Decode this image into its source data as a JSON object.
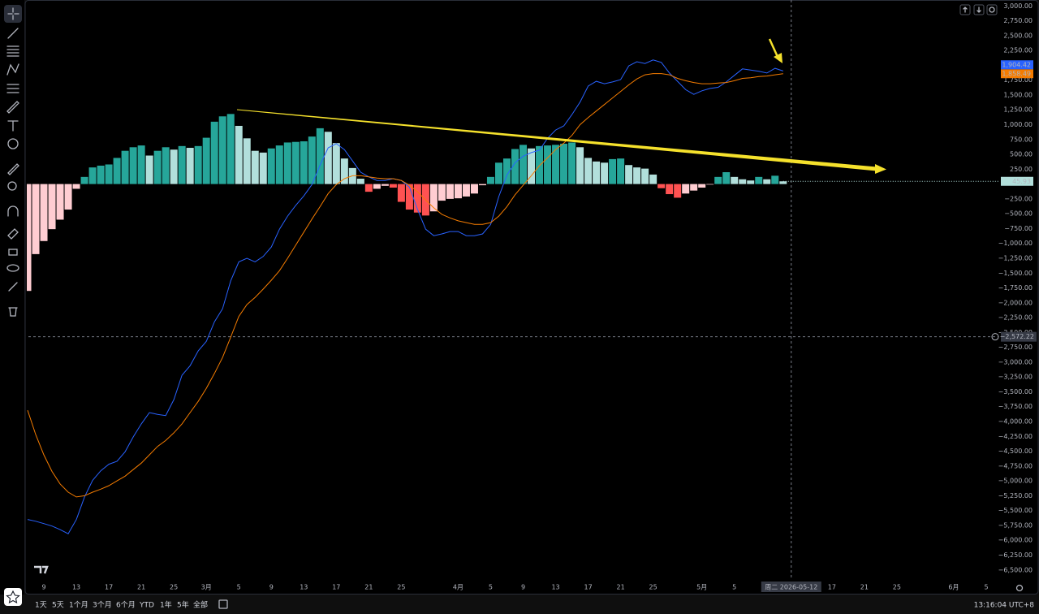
{
  "chart_data": {
    "type": "combo",
    "ylim": [
      -6640,
      3100
    ],
    "yticks": [
      {
        "value": 3000,
        "label": "3,000.00"
      },
      {
        "value": 2750,
        "label": "2,750.00"
      },
      {
        "value": 2500,
        "label": "2,500.00"
      },
      {
        "value": 2250,
        "label": "2,250.00"
      },
      {
        "value": 1750,
        "label": "1,750.00"
      },
      {
        "value": 1500,
        "label": "1,500.00"
      },
      {
        "value": 1250,
        "label": "1,250.00"
      },
      {
        "value": 1000,
        "label": "1,000.00"
      },
      {
        "value": 750,
        "label": "750.00"
      },
      {
        "value": 500,
        "label": "500.00"
      },
      {
        "value": 250,
        "label": "250.00"
      },
      {
        "value": -250,
        "label": "−250.00"
      },
      {
        "value": -500,
        "label": "−500.00"
      },
      {
        "value": -750,
        "label": "−750.00"
      },
      {
        "value": -1000,
        "label": "−1,000.00"
      },
      {
        "value": -1250,
        "label": "−1,250.00"
      },
      {
        "value": -1500,
        "label": "−1,500.00"
      },
      {
        "value": -1750,
        "label": "−1,750.00"
      },
      {
        "value": -2000,
        "label": "−2,000.00"
      },
      {
        "value": -2250,
        "label": "−2,250.00"
      },
      {
        "value": -2500,
        "label": "−2,500.00"
      },
      {
        "value": -2750,
        "label": "−2,750.00"
      },
      {
        "value": -3000,
        "label": "−3,000.00"
      },
      {
        "value": -3250,
        "label": "−3,250.00"
      },
      {
        "value": -3500,
        "label": "−3,500.00"
      },
      {
        "value": -3750,
        "label": "−3,750.00"
      },
      {
        "value": -4000,
        "label": "−4,000.00"
      },
      {
        "value": -4250,
        "label": "−4,250.00"
      },
      {
        "value": -4500,
        "label": "−4,500.00"
      },
      {
        "value": -4750,
        "label": "−4,750.00"
      },
      {
        "value": -5000,
        "label": "−5,000.00"
      },
      {
        "value": -5250,
        "label": "−5,250.00"
      },
      {
        "value": -5500,
        "label": "−5,500.00"
      },
      {
        "value": -5750,
        "label": "−5,750.00"
      },
      {
        "value": -6000,
        "label": "−6,000.00"
      },
      {
        "value": -6250,
        "label": "−6,250.00"
      },
      {
        "value": -6500,
        "label": "−6,500.00"
      }
    ],
    "grid": false,
    "categories": [
      null,
      null,
      "9",
      null,
      null,
      null,
      "13",
      null,
      null,
      null,
      "17",
      null,
      null,
      null,
      "21",
      null,
      null,
      null,
      "25",
      null,
      null,
      null,
      "3月",
      null,
      null,
      null,
      "5",
      null,
      null,
      null,
      "9",
      null,
      null,
      null,
      "13",
      null,
      null,
      null,
      "17",
      null,
      null,
      null,
      "21",
      null,
      null,
      null,
      "25",
      null,
      null,
      null,
      null,
      null,
      null,
      "4月",
      null,
      null,
      null,
      "5",
      null,
      null,
      null,
      "9",
      null,
      null,
      null,
      "13",
      null,
      null,
      null,
      "17",
      null,
      null,
      null,
      "21",
      null,
      null,
      null,
      "25",
      null,
      null,
      null,
      null,
      null,
      "5月",
      null,
      null,
      null,
      "5",
      null,
      null,
      null,
      null,
      null,
      null,
      "周二 2026-05-12",
      null,
      null,
      null,
      null,
      "17",
      null,
      null,
      null,
      "21",
      null,
      null,
      null,
      "25",
      null,
      null,
      null,
      null,
      null,
      null,
      "6月",
      null,
      null,
      null,
      "5",
      null
    ],
    "series": [
      {
        "type": "bar",
        "colors": {
          "positive_rising": "#26a69a",
          "positive_falling": "#b2dfdb",
          "negative_rising": "#ffcdd2",
          "negative_falling": "#ff5252"
        },
        "values": [
          -1800,
          -1180,
          -960,
          -760,
          -600,
          -430,
          -80,
          120,
          280,
          310,
          330,
          440,
          560,
          620,
          650,
          480,
          560,
          620,
          580,
          640,
          610,
          640,
          780,
          1050,
          1140,
          1180,
          980,
          770,
          560,
          530,
          600,
          650,
          700,
          710,
          720,
          800,
          940,
          880,
          690,
          430,
          270,
          90,
          -130,
          -80,
          -30,
          -60,
          -300,
          -430,
          -480,
          -530,
          -460,
          -280,
          -250,
          -240,
          -210,
          -160,
          -20,
          120,
          360,
          430,
          590,
          660,
          600,
          640,
          650,
          660,
          680,
          700,
          620,
          440,
          380,
          360,
          420,
          430,
          320,
          280,
          260,
          160,
          -70,
          -170,
          -230,
          -160,
          -110,
          -60,
          -10,
          120,
          200,
          120,
          80,
          60,
          120,
          80,
          140,
          45.93,
          null,
          null,
          null,
          null,
          null,
          null,
          null,
          null,
          null,
          null,
          null,
          null,
          null,
          null,
          null,
          null,
          null,
          null,
          null,
          null,
          null,
          null,
          null,
          null,
          null,
          null
        ],
        "value_labels": [
          null,
          null,
          null,
          null,
          null,
          null,
          null,
          null,
          null,
          null,
          null,
          null,
          null,
          null,
          null,
          null,
          null,
          null,
          null,
          null,
          null,
          null,
          null,
          null,
          null,
          null,
          null,
          null,
          null,
          null,
          null,
          null,
          null,
          null,
          null,
          null,
          null,
          null,
          null,
          null,
          null,
          null,
          null,
          null,
          null,
          null,
          null,
          null,
          null,
          null,
          null,
          null,
          null,
          null,
          null,
          null,
          null,
          null,
          null,
          null,
          null,
          null,
          null,
          null,
          null,
          null,
          null,
          null,
          null,
          null,
          null,
          null,
          null,
          null,
          null,
          null,
          null,
          null,
          null,
          null,
          null,
          null,
          null,
          null,
          null,
          null,
          null,
          null,
          null,
          null,
          null,
          null,
          null,
          "45.93",
          null,
          null,
          null,
          null,
          null,
          null,
          null,
          null,
          null,
          null,
          null,
          null,
          null,
          null,
          null,
          null,
          null,
          null,
          null,
          null,
          null,
          null,
          null,
          null,
          null,
          null
        ]
      },
      {
        "type": "line",
        "color": "#2962ff",
        "values": [
          -5650,
          -5680,
          -5720,
          -5760,
          -5820,
          -5890,
          -5650,
          -5270,
          -4990,
          -4830,
          -4720,
          -4670,
          -4510,
          -4260,
          -4040,
          -3850,
          -3880,
          -3900,
          -3630,
          -3220,
          -3060,
          -2810,
          -2650,
          -2320,
          -2100,
          -1630,
          -1310,
          -1250,
          -1310,
          -1220,
          -1060,
          -760,
          -540,
          -360,
          -200,
          -10,
          320,
          610,
          680,
          580,
          390,
          200,
          120,
          60,
          60,
          90,
          60,
          -50,
          -430,
          -760,
          -870,
          -840,
          -800,
          -800,
          -870,
          -870,
          -840,
          -680,
          -210,
          150,
          360,
          470,
          530,
          570,
          770,
          910,
          980,
          1170,
          1380,
          1650,
          1730,
          1690,
          1720,
          1760,
          1990,
          2060,
          2030,
          2090,
          2050,
          1870,
          1730,
          1590,
          1510,
          1570,
          1610,
          1630,
          1720,
          1830,
          1940,
          1920,
          1900,
          1870,
          1950,
          1904.42,
          null,
          null,
          null,
          null,
          null,
          null,
          null,
          null,
          null,
          null,
          null,
          null,
          null,
          null,
          null,
          null,
          null,
          null,
          null,
          null,
          null,
          null,
          null,
          null,
          null,
          null
        ],
        "value_labels": [
          null,
          null,
          null,
          null,
          null,
          null,
          null,
          null,
          null,
          null,
          null,
          null,
          null,
          null,
          null,
          null,
          null,
          null,
          null,
          null,
          null,
          null,
          null,
          null,
          null,
          null,
          null,
          null,
          null,
          null,
          null,
          null,
          null,
          null,
          null,
          null,
          null,
          null,
          null,
          null,
          null,
          null,
          null,
          null,
          null,
          null,
          null,
          null,
          null,
          null,
          null,
          null,
          null,
          null,
          null,
          null,
          null,
          null,
          null,
          null,
          null,
          null,
          null,
          null,
          null,
          null,
          null,
          null,
          null,
          null,
          null,
          null,
          null,
          null,
          null,
          null,
          null,
          null,
          null,
          null,
          null,
          null,
          null,
          null,
          null,
          null,
          null,
          null,
          null,
          null,
          null,
          null,
          null,
          "1,904.42",
          null,
          null,
          null,
          null,
          null,
          null,
          null,
          null,
          null,
          null,
          null,
          null,
          null,
          null,
          null,
          null,
          null,
          null,
          null,
          null,
          null,
          null,
          null,
          null,
          null,
          null
        ]
      },
      {
        "type": "line",
        "color": "#f57c00",
        "values": [
          -3810,
          -4220,
          -4560,
          -4840,
          -5050,
          -5190,
          -5270,
          -5250,
          -5190,
          -5140,
          -5080,
          -5000,
          -4920,
          -4810,
          -4700,
          -4560,
          -4420,
          -4320,
          -4190,
          -4040,
          -3850,
          -3660,
          -3440,
          -3190,
          -2920,
          -2580,
          -2230,
          -2030,
          -1910,
          -1770,
          -1620,
          -1460,
          -1250,
          -1030,
          -810,
          -590,
          -380,
          -160,
          -10,
          90,
          140,
          140,
          120,
          100,
          90,
          90,
          60,
          -20,
          -130,
          -270,
          -400,
          -510,
          -570,
          -620,
          -650,
          -680,
          -680,
          -650,
          -540,
          -380,
          -180,
          -20,
          140,
          310,
          440,
          580,
          690,
          820,
          1000,
          1120,
          1230,
          1340,
          1450,
          1560,
          1670,
          1770,
          1840,
          1860,
          1860,
          1840,
          1780,
          1740,
          1710,
          1690,
          1690,
          1700,
          1710,
          1740,
          1780,
          1790,
          1810,
          1820,
          1840,
          1858.49,
          null,
          null,
          null,
          null,
          null,
          null,
          null,
          null,
          null,
          null,
          null,
          null,
          null,
          null,
          null,
          null,
          null,
          null,
          null,
          null,
          null,
          null,
          null,
          null,
          null,
          null
        ],
        "value_labels": [
          null,
          null,
          null,
          null,
          null,
          null,
          null,
          null,
          null,
          null,
          null,
          null,
          null,
          null,
          null,
          null,
          null,
          null,
          null,
          null,
          null,
          null,
          null,
          null,
          null,
          null,
          null,
          null,
          null,
          null,
          null,
          null,
          null,
          null,
          null,
          null,
          null,
          null,
          null,
          null,
          null,
          null,
          null,
          null,
          null,
          null,
          null,
          null,
          null,
          null,
          null,
          null,
          null,
          null,
          null,
          null,
          null,
          null,
          null,
          null,
          null,
          null,
          null,
          null,
          null,
          null,
          null,
          null,
          null,
          null,
          null,
          null,
          null,
          null,
          null,
          null,
          null,
          null,
          null,
          null,
          null,
          null,
          null,
          null,
          null,
          null,
          null,
          null,
          null,
          null,
          null,
          null,
          null,
          "1,858.49",
          null,
          null,
          null,
          null,
          null,
          null,
          null,
          null,
          null,
          null,
          null,
          null,
          null,
          null,
          null,
          null,
          null,
          null,
          null,
          null,
          null,
          null,
          null,
          null,
          null,
          null
        ]
      }
    ],
    "crosshair": {
      "value": -2572.22,
      "label": "−2,572.22"
    }
  },
  "toolbar": {
    "timeframes": [
      "1天",
      "5天",
      "1个月",
      "3个月",
      "6个月",
      "YTD",
      "1年",
      "5年",
      "全部"
    ],
    "clock": "13:16:04 UTC+8"
  }
}
